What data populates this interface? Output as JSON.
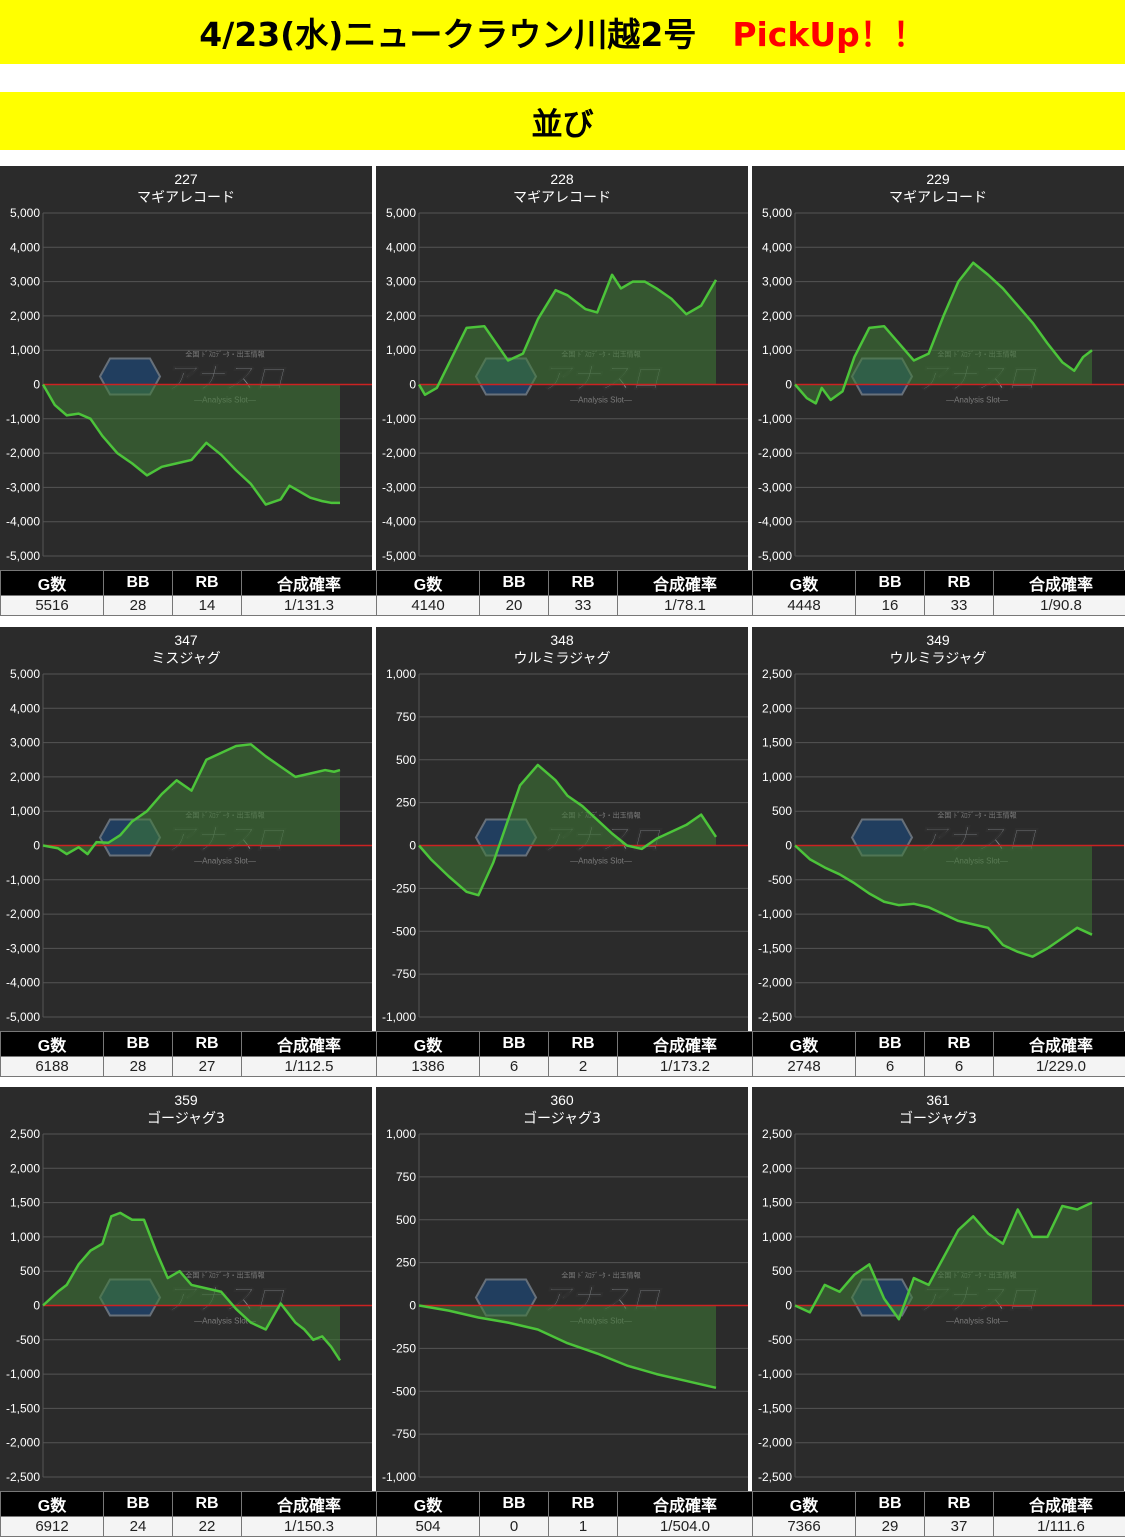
{
  "header": {
    "title": "4/23(水)ニュークラウン川越2号",
    "pickup": "PickUp！！",
    "section": "並び"
  },
  "watermark": {
    "text": "アナスロ",
    "sub": "—Analysis Slot—",
    "tag": "全国 ﾄﾞｽﾛﾃﾞｰﾀ・出玉情報"
  },
  "stat_headers": [
    "G数",
    "BB",
    "RB",
    "合成確率"
  ],
  "colors": {
    "line": "#4cc43a",
    "fill": "#3e7a35",
    "zero": "#cc2222",
    "panel": "#2b2b2b",
    "grid": "#555555",
    "banner": "#ffff00",
    "pickup": "#ff0000"
  },
  "chart_data": [
    {
      "type": "area",
      "machine_no": "227",
      "model": "マギアレコード",
      "ylim": [
        -5000,
        5000
      ],
      "yticks": [
        "5,000",
        "4,000",
        "3,000",
        "2,000",
        "1,000",
        "0",
        "-1,000",
        "-2,000",
        "-3,000",
        "-4,000",
        "-5,000"
      ],
      "stats": [
        "5516",
        "28",
        "14",
        "1/131.3"
      ],
      "x": [
        0,
        0.04,
        0.08,
        0.12,
        0.16,
        0.2,
        0.25,
        0.3,
        0.35,
        0.4,
        0.45,
        0.5,
        0.55,
        0.6,
        0.65,
        0.7,
        0.75,
        0.8,
        0.83,
        0.86,
        0.88,
        0.9,
        0.94,
        0.97,
        1
      ],
      "y": [
        0,
        -600,
        -900,
        -850,
        -1000,
        -1500,
        -2000,
        -2300,
        -2650,
        -2400,
        -2300,
        -2200,
        -1700,
        -2050,
        -2500,
        -2900,
        -3500,
        -3350,
        -2950,
        -3100,
        -3200,
        -3300,
        -3400,
        -3450,
        -3450
      ]
    },
    {
      "type": "area",
      "machine_no": "228",
      "model": "マギアレコード",
      "ylim": [
        -5000,
        5000
      ],
      "yticks": [
        "5,000",
        "4,000",
        "3,000",
        "2,000",
        "1,000",
        "0",
        "-1,000",
        "-2,000",
        "-3,000",
        "-4,000",
        "-5,000"
      ],
      "stats": [
        "4140",
        "20",
        "33",
        "1/78.1"
      ],
      "x": [
        0,
        0.02,
        0.06,
        0.1,
        0.16,
        0.22,
        0.26,
        0.3,
        0.35,
        0.4,
        0.46,
        0.5,
        0.56,
        0.6,
        0.65,
        0.68,
        0.72,
        0.76,
        0.8,
        0.85,
        0.9,
        0.95,
        1
      ],
      "y": [
        0,
        -300,
        -100,
        600,
        1650,
        1700,
        1200,
        700,
        900,
        1900,
        2750,
        2600,
        2200,
        2100,
        3200,
        2800,
        3000,
        3000,
        2800,
        2500,
        2050,
        2300,
        3050
      ]
    },
    {
      "type": "area",
      "machine_no": "229",
      "model": "マギアレコード",
      "ylim": [
        -5000,
        5000
      ],
      "yticks": [
        "5,000",
        "4,000",
        "3,000",
        "2,000",
        "1,000",
        "0",
        "-1,000",
        "-2,000",
        "-3,000",
        "-4,000",
        "-5,000"
      ],
      "stats": [
        "4448",
        "16",
        "33",
        "1/90.8"
      ],
      "x": [
        0,
        0.04,
        0.07,
        0.09,
        0.12,
        0.16,
        0.2,
        0.25,
        0.3,
        0.35,
        0.4,
        0.45,
        0.5,
        0.55,
        0.6,
        0.65,
        0.7,
        0.75,
        0.8,
        0.85,
        0.9,
        0.94,
        0.97,
        1
      ],
      "y": [
        0,
        -400,
        -550,
        -100,
        -450,
        -200,
        800,
        1650,
        1700,
        1200,
        700,
        900,
        2000,
        3000,
        3550,
        3200,
        2800,
        2300,
        1800,
        1200,
        650,
        400,
        800,
        1000
      ]
    },
    {
      "type": "area",
      "machine_no": "347",
      "model": "ミスジャグ",
      "ylim": [
        -5000,
        5000
      ],
      "yticks": [
        "5,000",
        "4,000",
        "3,000",
        "2,000",
        "1,000",
        "0",
        "-1,000",
        "-2,000",
        "-3,000",
        "-4,000",
        "-5,000"
      ],
      "stats": [
        "6188",
        "28",
        "27",
        "1/112.5"
      ],
      "x": [
        0,
        0.05,
        0.08,
        0.12,
        0.15,
        0.18,
        0.22,
        0.26,
        0.3,
        0.35,
        0.4,
        0.45,
        0.5,
        0.55,
        0.6,
        0.65,
        0.7,
        0.75,
        0.8,
        0.85,
        0.9,
        0.95,
        0.98,
        1
      ],
      "y": [
        0,
        -80,
        -250,
        -50,
        -250,
        100,
        80,
        300,
        700,
        1000,
        1500,
        1900,
        1600,
        2500,
        2700,
        2900,
        2950,
        2600,
        2300,
        2000,
        2100,
        2200,
        2150,
        2200
      ]
    },
    {
      "type": "area",
      "machine_no": "348",
      "model": "ウルミラジャグ",
      "ylim": [
        -1000,
        1000
      ],
      "yticks": [
        "1,000",
        "750",
        "500",
        "250",
        "0",
        "-250",
        "-500",
        "-750",
        "-1,000"
      ],
      "stats": [
        "1386",
        "6",
        "2",
        "1/173.2"
      ],
      "x": [
        0,
        0.04,
        0.1,
        0.16,
        0.2,
        0.25,
        0.3,
        0.34,
        0.4,
        0.46,
        0.5,
        0.55,
        0.6,
        0.65,
        0.7,
        0.75,
        0.8,
        0.85,
        0.9,
        0.95,
        1
      ],
      "y": [
        0,
        -80,
        -180,
        -270,
        -290,
        -100,
        150,
        350,
        470,
        380,
        290,
        230,
        150,
        70,
        0,
        -20,
        40,
        80,
        120,
        180,
        50
      ]
    },
    {
      "type": "area",
      "machine_no": "349",
      "model": "ウルミラジャグ",
      "ylim": [
        -2500,
        2500
      ],
      "yticks": [
        "2,500",
        "2,000",
        "1,500",
        "1,000",
        "500",
        "0",
        "-500",
        "-1,000",
        "-1,500",
        "-2,000",
        "-2,500"
      ],
      "stats": [
        "2748",
        "6",
        "6",
        "1/229.0"
      ],
      "x": [
        0,
        0.05,
        0.1,
        0.15,
        0.2,
        0.25,
        0.3,
        0.35,
        0.4,
        0.45,
        0.5,
        0.55,
        0.6,
        0.65,
        0.7,
        0.75,
        0.8,
        0.85,
        0.9,
        0.95,
        1
      ],
      "y": [
        0,
        -200,
        -320,
        -420,
        -550,
        -700,
        -820,
        -870,
        -850,
        -900,
        -1000,
        -1100,
        -1150,
        -1200,
        -1450,
        -1550,
        -1620,
        -1500,
        -1350,
        -1200,
        -1300
      ]
    },
    {
      "type": "area",
      "machine_no": "359",
      "model": "ゴージャグ3",
      "ylim": [
        -2500,
        2500
      ],
      "yticks": [
        "2,500",
        "2,000",
        "1,500",
        "1,000",
        "500",
        "0",
        "-500",
        "-1,000",
        "-1,500",
        "-2,000",
        "-2,500"
      ],
      "stats": [
        "6912",
        "24",
        "22",
        "1/150.3"
      ],
      "x": [
        0,
        0.05,
        0.08,
        0.12,
        0.16,
        0.2,
        0.23,
        0.26,
        0.3,
        0.34,
        0.38,
        0.42,
        0.46,
        0.5,
        0.55,
        0.6,
        0.65,
        0.7,
        0.75,
        0.8,
        0.85,
        0.88,
        0.91,
        0.94,
        0.97,
        1
      ],
      "y": [
        0,
        200,
        300,
        600,
        800,
        900,
        1300,
        1350,
        1250,
        1250,
        800,
        400,
        500,
        300,
        250,
        200,
        -50,
        -250,
        -350,
        30,
        -250,
        -350,
        -500,
        -450,
        -600,
        -800
      ]
    },
    {
      "type": "area",
      "machine_no": "360",
      "model": "ゴージャグ3",
      "ylim": [
        -1000,
        1000
      ],
      "yticks": [
        "1,000",
        "750",
        "500",
        "250",
        "0",
        "-250",
        "-500",
        "-750",
        "-1,000"
      ],
      "stats": [
        "504",
        "0",
        "1",
        "1/504.0"
      ],
      "x": [
        0,
        0.1,
        0.2,
        0.3,
        0.4,
        0.5,
        0.6,
        0.7,
        0.8,
        0.9,
        1
      ],
      "y": [
        0,
        -30,
        -70,
        -100,
        -140,
        -220,
        -280,
        -350,
        -400,
        -440,
        -480
      ]
    },
    {
      "type": "area",
      "machine_no": "361",
      "model": "ゴージャグ3",
      "ylim": [
        -2500,
        2500
      ],
      "yticks": [
        "2,500",
        "2,000",
        "1,500",
        "1,000",
        "500",
        "0",
        "-500",
        "-1,000",
        "-1,500",
        "-2,000",
        "-2,500"
      ],
      "stats": [
        "7366",
        "29",
        "37",
        "1/111.6"
      ],
      "x": [
        0,
        0.05,
        0.1,
        0.15,
        0.2,
        0.25,
        0.3,
        0.35,
        0.4,
        0.45,
        0.5,
        0.55,
        0.6,
        0.65,
        0.7,
        0.75,
        0.8,
        0.85,
        0.9,
        0.95,
        1
      ],
      "y": [
        0,
        -100,
        300,
        200,
        450,
        600,
        100,
        -200,
        400,
        300,
        700,
        1100,
        1300,
        1050,
        900,
        1400,
        1000,
        1000,
        1450,
        1400,
        1500
      ]
    }
  ]
}
